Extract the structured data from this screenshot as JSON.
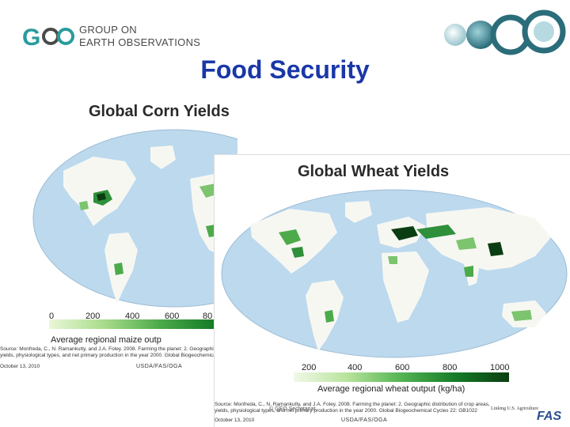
{
  "header": {
    "org_line1": "GROUP ON",
    "org_line2": "EARTH OBSERVATIONS",
    "logo_name": "GEO"
  },
  "slide_title": "Food Security",
  "corn": {
    "title": "Global Corn Yields",
    "ticks": [
      "0",
      "200",
      "400",
      "600",
      "80"
    ],
    "caption": "Average regional maize outp",
    "source": "Source: Monfreda, C., N. Ramankutty, and J.A. Foley. 2008. Farming the planet: 2. Geographic yields, physiological types, and net primary production in the year 2000. Global Biogeochemical",
    "date": "October 13, 2010",
    "org": "USDA/FAS/OGA"
  },
  "wheat": {
    "title": "Global Wheat Yields",
    "ticks": [
      "200",
      "400",
      "600",
      "800",
      "1000"
    ],
    "caption": "Average regional wheat output (kg/ha)",
    "source": "Source: Monfreda, C., N. Ramankutty, and J.A. Foley. 2008. Farming the planet: 2. Geographic distribution of crop areas, yields, physiological types, and net primary production in the year 2000. Global Biogeochemical Cycles 22: GB1022",
    "date": "October 13, 2010",
    "org": "USDA/FAS/OGA"
  },
  "copyright": "© GEO Secretariat",
  "footer_logo": {
    "tagline": "Linking U.S. Agriculture",
    "name": "FAS"
  },
  "colors": {
    "title_blue": "#1a37a8",
    "ocean_blue": "#bcd9ee",
    "land_white": "#f7f7f2",
    "crop_green": "#2f8f3a",
    "crop_dark": "#0b3d12"
  }
}
